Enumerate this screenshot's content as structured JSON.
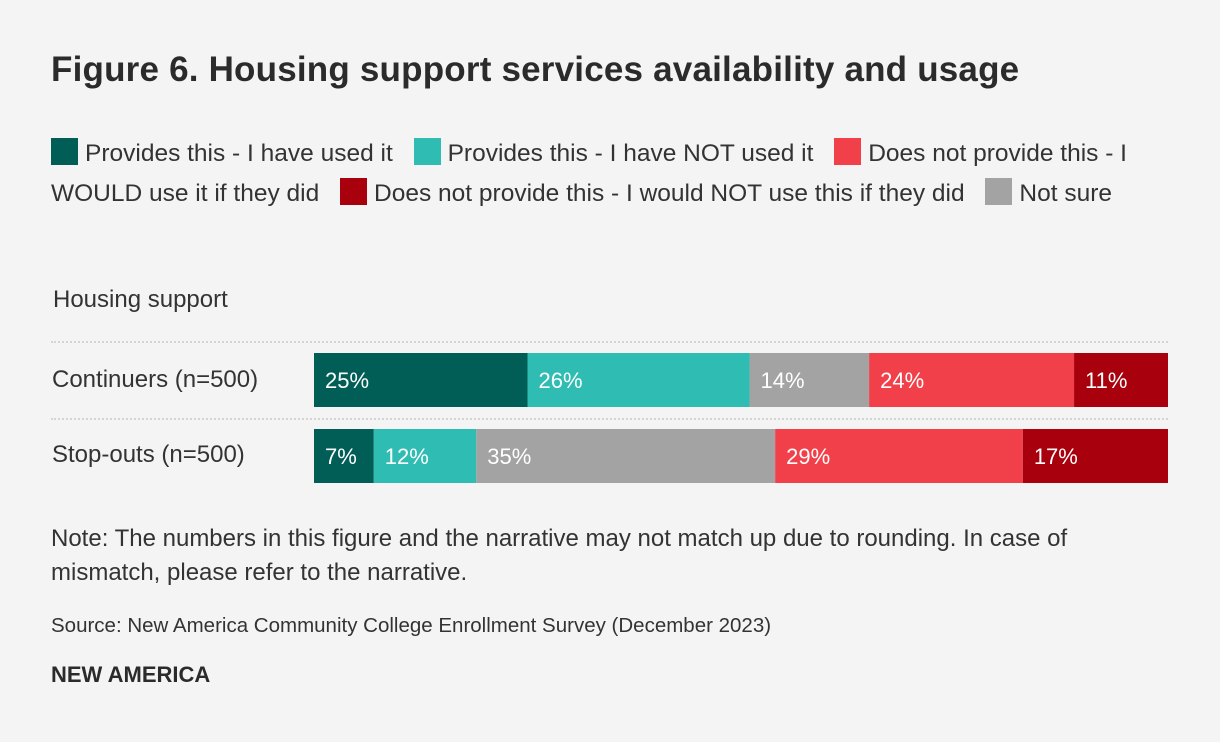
{
  "title": "Figure 6. Housing support services availability and usage",
  "legend": [
    {
      "label": "Provides this - I have used it",
      "color": "#005e57"
    },
    {
      "label": "Provides this - I have NOT used it",
      "color": "#2ebcb3"
    },
    {
      "label": "Does not provide this - I WOULD use it if they did",
      "color": "#f2404b"
    },
    {
      "label": "Does not provide this - I would NOT use this if they did",
      "color": "#a8000c"
    },
    {
      "label": "Not sure",
      "color": "#a3a3a3"
    }
  ],
  "chart_data": {
    "type": "bar",
    "orientation": "horizontal",
    "stacked": true,
    "title": "Housing support",
    "categories": [
      "Continuers (n=500)",
      "Stop-outs (n=500)"
    ],
    "series": [
      {
        "name": "Provides this - I have used it",
        "color": "#005e57",
        "values": [
          25,
          7
        ],
        "labels": [
          "25%",
          "7%"
        ]
      },
      {
        "name": "Provides this - I have NOT used it",
        "color": "#2ebcb3",
        "values": [
          26,
          12
        ],
        "labels": [
          "26%",
          "12%"
        ]
      },
      {
        "name": "Not sure",
        "color": "#a3a3a3",
        "values": [
          14,
          35
        ],
        "labels": [
          "14%",
          "35%"
        ]
      },
      {
        "name": "Does not provide this - I WOULD use it if they did",
        "color": "#f2404b",
        "values": [
          24,
          29
        ],
        "labels": [
          "24%",
          "29%"
        ]
      },
      {
        "name": "Does not provide this - I would NOT use this if they did",
        "color": "#a8000c",
        "values": [
          11,
          17
        ],
        "labels": [
          "11%",
          "17%"
        ]
      }
    ]
  },
  "note": "Note: The numbers in this figure and the narrative may not match up due to rounding. In case of mismatch, please refer to the narrative.",
  "source": "Source: New America Community College Enrollment Survey (December 2023)",
  "brand": "NEW AMERICA"
}
